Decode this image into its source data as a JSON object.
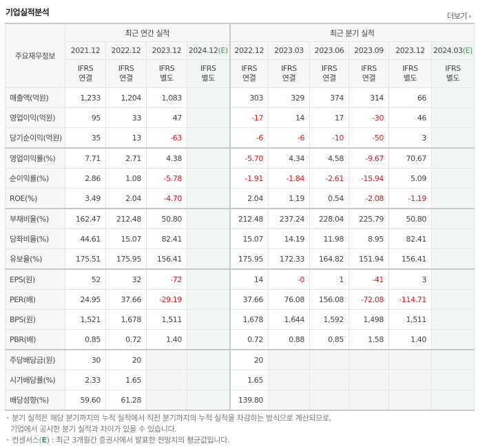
{
  "header": {
    "title": "기업실적분석",
    "more_label": "더보기"
  },
  "table": {
    "row_header_label": "주요재무정보",
    "groups": {
      "annual": "최근 연간 실적",
      "quarterly": "최근 분기 실적"
    },
    "estimate_mark": "(E)",
    "annual_columns": [
      {
        "date": "2021.12",
        "std": "IFRS",
        "basis": "연결",
        "estimate": false
      },
      {
        "date": "2022.12",
        "std": "IFRS",
        "basis": "연결",
        "estimate": false
      },
      {
        "date": "2023.12",
        "std": "IFRS",
        "basis": "별도",
        "estimate": false
      },
      {
        "date": "2024.12",
        "std": "IFRS",
        "basis": "별도",
        "estimate": true
      }
    ],
    "quarterly_columns": [
      {
        "date": "2022.12",
        "std": "IFRS",
        "basis": "연결",
        "estimate": false
      },
      {
        "date": "2023.03",
        "std": "IFRS",
        "basis": "연결",
        "estimate": false
      },
      {
        "date": "2023.06",
        "std": "IFRS",
        "basis": "연결",
        "estimate": false
      },
      {
        "date": "2023.09",
        "std": "IFRS",
        "basis": "연결",
        "estimate": false
      },
      {
        "date": "2023.12",
        "std": "IFRS",
        "basis": "별도",
        "estimate": false
      },
      {
        "date": "2024.03",
        "std": "IFRS",
        "basis": "별도",
        "estimate": true
      }
    ],
    "rows": [
      {
        "label": "매출액(억원)",
        "values": [
          "1,233",
          "1,204",
          "1,083",
          "",
          "303",
          "329",
          "374",
          "314",
          "66",
          ""
        ]
      },
      {
        "label": "영업이익(억원)",
        "values": [
          "95",
          "33",
          "47",
          "",
          "-17",
          "14",
          "17",
          "-30",
          "46",
          ""
        ]
      },
      {
        "label": "당기순이익(억원)",
        "values": [
          "35",
          "13",
          "-63",
          "",
          "-6",
          "-6",
          "-10",
          "-50",
          "3",
          ""
        ]
      },
      {
        "label": "영업이익률(%)",
        "values": [
          "7.71",
          "2.71",
          "4.38",
          "",
          "-5.70",
          "4.34",
          "4.58",
          "-9.67",
          "70.67",
          ""
        ]
      },
      {
        "label": "순이익률(%)",
        "values": [
          "2.86",
          "1.08",
          "-5.78",
          "",
          "-1.91",
          "-1.84",
          "-2.61",
          "-15.94",
          "5.09",
          ""
        ]
      },
      {
        "label": "ROE(%)",
        "values": [
          "3.49",
          "2.04",
          "-4.70",
          "",
          "2.04",
          "1.19",
          "0.54",
          "-2.08",
          "-1.19",
          ""
        ]
      },
      {
        "label": "부채비율(%)",
        "values": [
          "162.47",
          "212.48",
          "50.80",
          "",
          "212.48",
          "237.24",
          "228.04",
          "225.79",
          "50.80",
          ""
        ]
      },
      {
        "label": "당좌비율(%)",
        "values": [
          "44.61",
          "15.07",
          "82.41",
          "",
          "15.07",
          "14.19",
          "11.98",
          "8.95",
          "82.41",
          ""
        ]
      },
      {
        "label": "유보율(%)",
        "values": [
          "175.51",
          "175.95",
          "156.41",
          "",
          "175.95",
          "172.33",
          "164.82",
          "151.94",
          "156.41",
          ""
        ]
      },
      {
        "label": "EPS(원)",
        "values": [
          "52",
          "32",
          "-72",
          "",
          "14",
          "-0",
          "1",
          "-41",
          "3",
          ""
        ]
      },
      {
        "label": "PER(배)",
        "values": [
          "24.95",
          "37.66",
          "-29.19",
          "",
          "37.66",
          "76.08",
          "156.08",
          "-72.08",
          "-114.71",
          ""
        ]
      },
      {
        "label": "BPS(원)",
        "values": [
          "1,521",
          "1,678",
          "1,511",
          "",
          "1,678",
          "1,644",
          "1,592",
          "1,498",
          "1,511",
          ""
        ]
      },
      {
        "label": "PBR(배)",
        "values": [
          "0.85",
          "0.72",
          "1.40",
          "",
          "0.72",
          "0.88",
          "0.85",
          "1.58",
          "1.40",
          ""
        ]
      },
      {
        "label": "주당배당금(원)",
        "values": [
          "30",
          "20",
          "",
          "",
          "20",
          "",
          "",
          "",
          "",
          ""
        ]
      },
      {
        "label": "시가배당률(%)",
        "values": [
          "2.33",
          "1.65",
          "",
          "",
          "1.65",
          "",
          "",
          "",
          "",
          ""
        ]
      },
      {
        "label": "배당성향(%)",
        "values": [
          "59.60",
          "61.28",
          "",
          "",
          "139.80",
          "",
          "",
          "",
          "",
          ""
        ]
      }
    ],
    "section_breaks_before_rows": [
      3,
      6,
      9,
      13
    ]
  },
  "notes": {
    "line1": "분기 실적은 해당 분기까지의 누적 실적에서 직전 분기까지의 누적 실적을 차감하는 방식으로 계산되므로,",
    "line2": "기업에서 공시한 분기 실적과 차이가 있을 수 있습니다.",
    "line3_prefix": "컨센서스(",
    "line3_mark": "E",
    "line3_suffix": ") : 최근 3개월간 증권사에서 발표한 전망치의 평균값입니다."
  },
  "colors": {
    "negative": "#e4151b",
    "ifrs_label": "#e8701a",
    "estimate_mark": "#3a9a52",
    "estimate_bg": "#f1f7f2",
    "empty_bg": "#f5f5f5",
    "header_bg": "#f7f7f7"
  }
}
